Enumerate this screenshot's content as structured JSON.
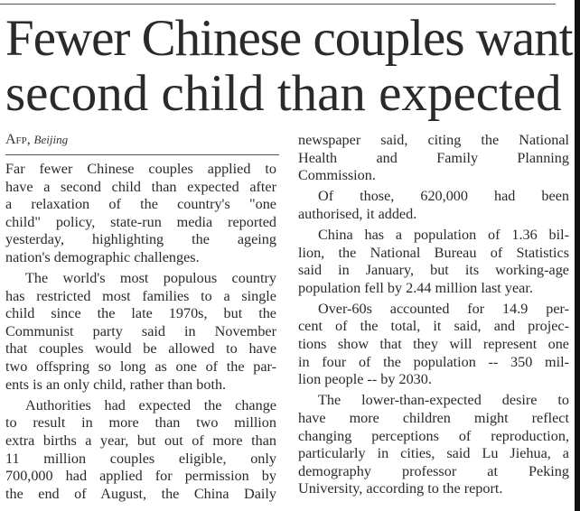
{
  "headline": [
    "Fewer Chinese couples want",
    "second child than expected"
  ],
  "byline": {
    "agency": "Afp,",
    "place": "Beijing"
  },
  "left_column": [
    [
      "Far fewer Chinese couples applied to",
      "have a second child than expected after",
      "a relaxation of the country's \"one",
      "child\" policy, state-run media reported",
      "yesterday, highlighting the ageing",
      "nation's demographic challenges."
    ],
    [
      "The world's most populous country",
      "has restricted most families to a single",
      "child since the late 1970s, but the",
      "Communist party said in November",
      "that couples would be allowed to have",
      "two offspring so long as one of the par-",
      "ents is an only child, rather than both."
    ],
    [
      "Authorities had expected the change",
      "to result in more than two million",
      "extra births a year, but out of more than",
      "11 million couples eligible, only",
      "700,000 had applied for permission by",
      "the end of August, the China Daily"
    ]
  ],
  "right_column": [
    [
      "newspaper said, citing the National",
      "Health and Family Planning",
      "Commission."
    ],
    [
      "Of those, 620,000 had been",
      "authorised, it added."
    ],
    [
      "China has a population of 1.36 bil-",
      "lion, the National Bureau of Statistics",
      "said in January, but its working-age",
      "population fell by 2.44 million last year."
    ],
    [
      "Over-60s accounted for 14.9 per-",
      "cent of the total, it said, and projec-",
      "tions show that they will represent one",
      "in four of the population -- 350 mil-",
      "lion people -- by 2030."
    ],
    [
      "The lower-than-expected desire to",
      "have more children might reflect",
      "changing perceptions of reproduction,",
      "particularly in cities, said Lu Jiehua, a",
      "demography professor at Peking",
      "University, according to the report."
    ]
  ]
}
